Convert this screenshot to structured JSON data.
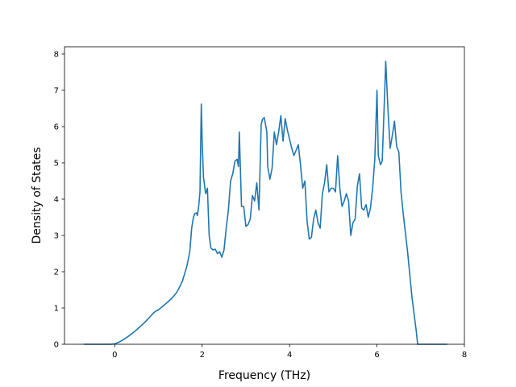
{
  "chart_data": {
    "type": "line",
    "title": "",
    "xlabel": "Frequency (THz)",
    "ylabel": "Density of States",
    "xlim": [
      -1.15,
      8.0
    ],
    "ylim": [
      0,
      8.2
    ],
    "xticks": [
      0,
      2,
      4,
      6,
      8
    ],
    "yticks": [
      0,
      1,
      2,
      3,
      4,
      5,
      6,
      7,
      8
    ],
    "grid": false,
    "legend": "none",
    "series": [
      {
        "color": "#1f77b4",
        "x": [
          -0.7,
          -0.4,
          -0.1,
          0.0,
          0.1,
          0.2,
          0.3,
          0.4,
          0.5,
          0.6,
          0.7,
          0.8,
          0.9,
          0.95,
          1.0,
          1.1,
          1.2,
          1.3,
          1.4,
          1.45,
          1.5,
          1.55,
          1.6,
          1.65,
          1.7,
          1.72,
          1.76,
          1.8,
          1.83,
          1.87,
          1.89,
          1.92,
          1.95,
          1.98,
          2.0,
          2.03,
          2.08,
          2.12,
          2.16,
          2.2,
          2.25,
          2.3,
          2.35,
          2.4,
          2.45,
          2.5,
          2.55,
          2.6,
          2.65,
          2.7,
          2.75,
          2.8,
          2.83,
          2.85,
          2.9,
          2.95,
          3.0,
          3.05,
          3.1,
          3.15,
          3.2,
          3.25,
          3.3,
          3.35,
          3.38,
          3.42,
          3.48,
          3.5,
          3.55,
          3.6,
          3.65,
          3.7,
          3.75,
          3.8,
          3.85,
          3.9,
          3.95,
          4.0,
          4.05,
          4.1,
          4.15,
          4.2,
          4.25,
          4.3,
          4.35,
          4.4,
          4.45,
          4.5,
          4.55,
          4.6,
          4.65,
          4.7,
          4.75,
          4.8,
          4.85,
          4.9,
          4.95,
          5.0,
          5.05,
          5.1,
          5.15,
          5.2,
          5.25,
          5.3,
          5.35,
          5.4,
          5.45,
          5.5,
          5.55,
          5.6,
          5.65,
          5.7,
          5.75,
          5.8,
          5.85,
          5.9,
          5.95,
          6.0,
          6.03,
          6.08,
          6.12,
          6.16,
          6.2,
          6.25,
          6.3,
          6.35,
          6.4,
          6.45,
          6.5,
          6.55,
          6.6,
          6.7,
          6.8,
          6.9,
          6.93,
          7.0,
          7.3,
          7.6
        ],
        "y": [
          0.0,
          0.0,
          0.0,
          0.01,
          0.06,
          0.13,
          0.21,
          0.3,
          0.4,
          0.51,
          0.62,
          0.75,
          0.88,
          0.92,
          0.95,
          1.05,
          1.15,
          1.26,
          1.4,
          1.5,
          1.62,
          1.75,
          1.95,
          2.15,
          2.45,
          2.6,
          3.2,
          3.5,
          3.6,
          3.62,
          3.55,
          3.8,
          4.2,
          6.62,
          5.6,
          4.6,
          4.15,
          4.3,
          3.0,
          2.65,
          2.6,
          2.62,
          2.5,
          2.55,
          2.4,
          2.6,
          3.2,
          3.7,
          4.5,
          4.7,
          5.05,
          5.1,
          4.9,
          5.85,
          3.8,
          3.8,
          3.25,
          3.3,
          3.45,
          4.1,
          3.95,
          4.45,
          3.7,
          6.05,
          6.2,
          6.25,
          5.85,
          4.9,
          4.55,
          4.85,
          5.85,
          5.5,
          5.85,
          6.3,
          5.6,
          6.22,
          5.9,
          5.65,
          5.4,
          5.2,
          5.35,
          5.5,
          4.95,
          4.3,
          4.5,
          3.4,
          2.9,
          2.95,
          3.45,
          3.7,
          3.35,
          3.2,
          4.15,
          4.45,
          4.95,
          4.2,
          4.3,
          4.3,
          4.2,
          5.2,
          4.3,
          3.8,
          3.95,
          4.15,
          3.95,
          3.0,
          3.35,
          3.45,
          4.35,
          4.7,
          3.75,
          3.7,
          3.85,
          3.5,
          3.75,
          4.3,
          5.1,
          7.0,
          5.2,
          4.95,
          5.05,
          6.4,
          7.8,
          6.5,
          5.4,
          5.75,
          6.15,
          5.45,
          5.3,
          4.2,
          3.6,
          2.55,
          1.3,
          0.35,
          0.0,
          0.0,
          0.0,
          0.0
        ]
      }
    ]
  }
}
